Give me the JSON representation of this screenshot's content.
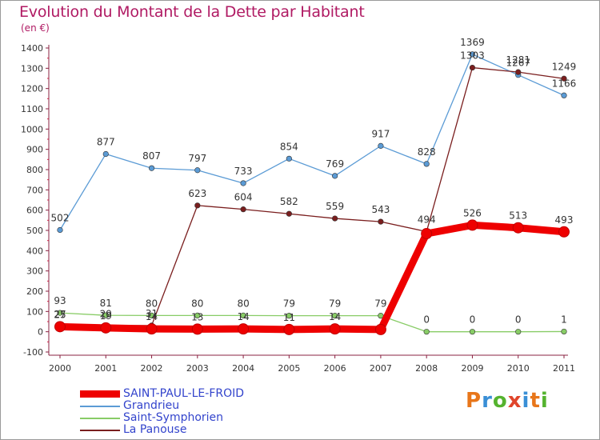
{
  "title": "Evolution du Montant de la Dette par Habitant",
  "unit": "(en €)",
  "brand": {
    "text": "Proxiti",
    "colors": [
      "#e8761a",
      "#3a8fd6",
      "#55b32f",
      "#e0452b",
      "#3a8fd6",
      "#e8761a",
      "#55b32f"
    ]
  },
  "chart_data": {
    "type": "line",
    "categories": [
      "2000",
      "2001",
      "2002",
      "2003",
      "2004",
      "2005",
      "2006",
      "2007",
      "2008",
      "2009",
      "2010",
      "2011"
    ],
    "ylim": [
      -100,
      1400
    ],
    "yticks": [
      -100,
      0,
      100,
      200,
      300,
      400,
      500,
      600,
      700,
      800,
      900,
      1000,
      1100,
      1200,
      1300,
      1400
    ],
    "grid": false,
    "legend_position": "bottom-left",
    "series": [
      {
        "name": "SAINT-PAUL-LE-FROID",
        "color": "#ee0000",
        "values": [
          25,
          19,
          14,
          13,
          14,
          11,
          14,
          11,
          484,
          526,
          513,
          493
        ],
        "labels": [
          "25",
          "19",
          "14",
          "13",
          "14",
          "11",
          "14",
          "",
          "",
          "526",
          "513",
          "493"
        ]
      },
      {
        "name": "Grandrieu",
        "color": "#5b9bd5",
        "values": [
          502,
          877,
          807,
          797,
          733,
          854,
          769,
          917,
          828,
          1369,
          1267,
          1166
        ],
        "labels": [
          "502",
          "877",
          "807",
          "797",
          "733",
          "854",
          "769",
          "917",
          "828",
          "1369",
          "1267",
          "1166"
        ]
      },
      {
        "name": "Saint-Symphorien",
        "color": "#88cc66",
        "values": [
          93,
          81,
          80,
          80,
          80,
          79,
          79,
          79,
          0,
          0,
          0,
          1
        ],
        "labels": [
          "93",
          "81",
          "80",
          "80",
          "80",
          "79",
          "79",
          "79",
          "0",
          "0",
          "0",
          "1"
        ]
      },
      {
        "name": "La Panouse",
        "color": "#7a1e1e",
        "values": [
          27,
          29,
          31,
          623,
          604,
          582,
          559,
          543,
          494,
          1303,
          1281,
          1249
        ],
        "labels": [
          "27",
          "29",
          "31",
          "623",
          "604",
          "582",
          "559",
          "543",
          "494",
          "1303",
          "1281",
          "1249"
        ]
      }
    ]
  }
}
